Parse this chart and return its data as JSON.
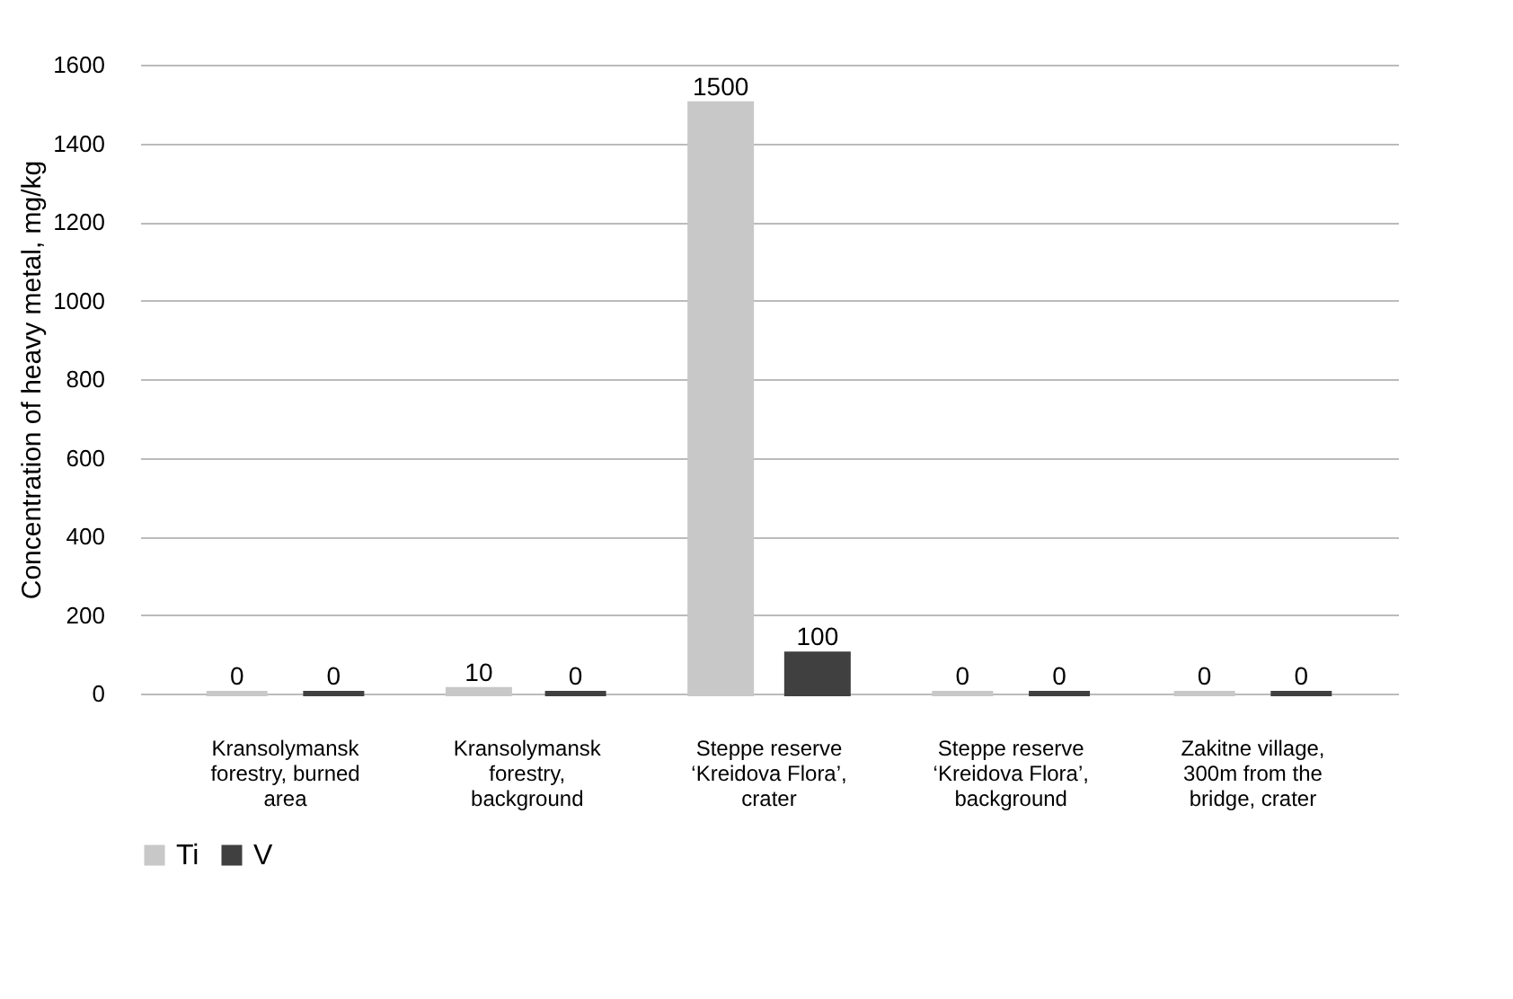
{
  "chart_data": {
    "type": "bar",
    "ylabel": "Concentration of heavy metal, mg/kg",
    "categories": [
      "Kransolymansk forestry, burned area",
      "Kransolymansk forestry, background",
      "Steppe reserve ‘Kreidova Flora’, crater",
      "Steppe reserve ‘Kreidova Flora’, background",
      "Zakitne village, 300m from the bridge, crater"
    ],
    "series": [
      {
        "name": "Ti",
        "color": "#c8c8c8",
        "values": [
          0,
          10,
          1500,
          0,
          0
        ]
      },
      {
        "name": "V",
        "color": "#404040",
        "values": [
          0,
          0,
          100,
          0,
          0
        ]
      }
    ],
    "ylim": [
      0,
      1600
    ],
    "yticks": [
      0,
      200,
      400,
      600,
      800,
      1000,
      1200,
      1400,
      1600
    ],
    "grid": "y",
    "legend": "bottom",
    "data_labels": true
  }
}
